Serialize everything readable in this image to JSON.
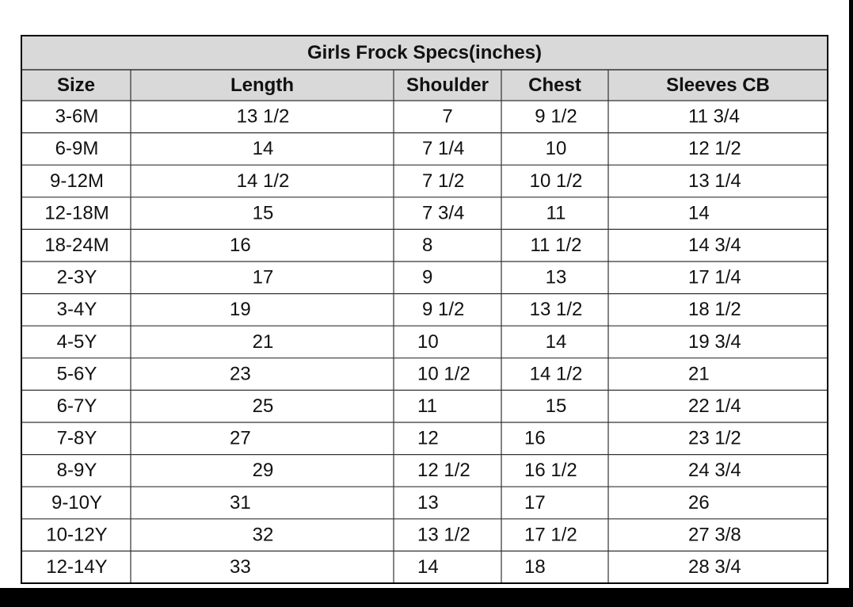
{
  "table": {
    "title": "Girls Frock Specs(inches)",
    "header": [
      "Size",
      "Length",
      "Shoulder",
      "Chest",
      "Sleeves CB"
    ],
    "rows": [
      [
        "3-6M",
        "13 1/2",
        "7",
        "9 1/2",
        "11 3/4"
      ],
      [
        "6-9M",
        "14",
        "7 1/4",
        "10",
        "12 1/2"
      ],
      [
        "9-12M",
        "14 1/2",
        "7 1/2",
        "10 1/2",
        "13 1/4"
      ],
      [
        "12-18M",
        "15",
        "7 3/4",
        "11",
        "14"
      ],
      [
        "18-24M",
        "16",
        "8",
        "11 1/2",
        "14 3/4"
      ],
      [
        "2-3Y",
        "17",
        "9",
        "13",
        "17 1/4"
      ],
      [
        "3-4Y",
        "19",
        "9 1/2",
        "13 1/2",
        "18 1/2"
      ],
      [
        "4-5Y",
        "21",
        "10",
        "14",
        "19 3/4"
      ],
      [
        "5-6Y",
        "23",
        "10 1/2",
        "14 1/2",
        "21"
      ],
      [
        "6-7Y",
        "25",
        "11",
        "15",
        "22 1/4"
      ],
      [
        "7-8Y",
        "27",
        "12",
        "16",
        "23 1/2"
      ],
      [
        "8-9Y",
        "29",
        "12 1/2",
        "16 1/2",
        "24 3/4"
      ],
      [
        "9-10Y",
        "31",
        "13",
        "17",
        "26"
      ],
      [
        "10-12Y",
        "32",
        "13 1/2",
        "17 1/2",
        "27 3/8"
      ],
      [
        "12-14Y",
        "33",
        "14",
        "18",
        "28 3/4"
      ]
    ]
  }
}
